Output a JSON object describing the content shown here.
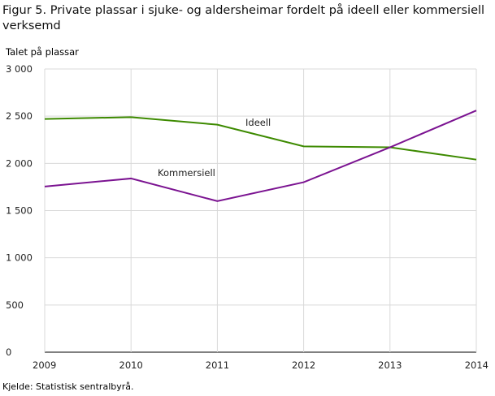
{
  "chart_data": {
    "type": "line",
    "title": "Figur 5. Private plassar i sjuke- og aldersheimar fordelt på ideell eller kommersiell verksemd",
    "ylabel": "Talet på plassar",
    "xlabel": "",
    "source": "Kjelde: Statistisk sentralbyrå.",
    "x": [
      2009,
      2010,
      2011,
      2012,
      2013,
      2014
    ],
    "xtick_labels": [
      "2009",
      "2010",
      "2011",
      "2012",
      "2013",
      "2014"
    ],
    "ylim": [
      0,
      3000
    ],
    "yticks": [
      0,
      500,
      1000,
      1500,
      2000,
      2500,
      3000
    ],
    "ytick_labels": [
      "0",
      "500",
      "1 000",
      "1 500",
      "2 000",
      "2 500",
      "3 000"
    ],
    "grid": true,
    "series": [
      {
        "name": "Ideell",
        "color": "#3d8a00",
        "values": [
          2470,
          2490,
          2410,
          2180,
          2170,
          2040
        ]
      },
      {
        "name": "Kommersiell",
        "color": "#7b1391",
        "values": [
          1755,
          1840,
          1600,
          1800,
          2170,
          2560
        ]
      }
    ]
  }
}
